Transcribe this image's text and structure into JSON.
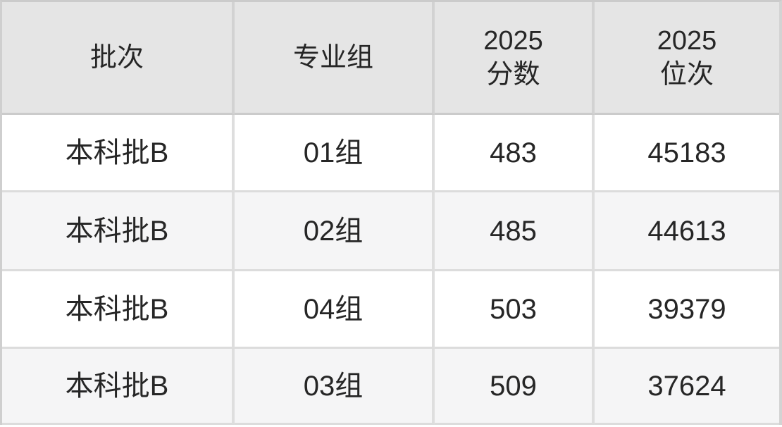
{
  "chart_data": {
    "type": "table",
    "title": "",
    "columns": [
      "批次",
      "专业组",
      "2025 分数",
      "2025 位次"
    ],
    "rows": [
      [
        "本科批B",
        "01组",
        483,
        45183
      ],
      [
        "本科批B",
        "02组",
        485,
        44613
      ],
      [
        "本科批B",
        "04组",
        503,
        39379
      ],
      [
        "本科批B",
        "03组",
        509,
        37624
      ]
    ]
  },
  "table": {
    "header": {
      "batch": "批次",
      "group": "专业组",
      "score": "2025\n分数",
      "rank": "2025\n位次"
    },
    "rows": [
      {
        "batch": "本科批B",
        "group": "01组",
        "score": "483",
        "rank": "45183"
      },
      {
        "batch": "本科批B",
        "group": "02组",
        "score": "485",
        "rank": "44613"
      },
      {
        "batch": "本科批B",
        "group": "04组",
        "score": "503",
        "rank": "39379"
      },
      {
        "batch": "本科批B",
        "group": "03组",
        "score": "509",
        "rank": "37624"
      }
    ],
    "colors": {
      "header_bg": "#e5e5e5",
      "row_odd_bg": "#ffffff",
      "row_even_bg": "#f5f5f6",
      "grid_line_body": "#dcdcdc",
      "grid_line_outer": "#cbcbcb",
      "text": "#262626"
    }
  }
}
